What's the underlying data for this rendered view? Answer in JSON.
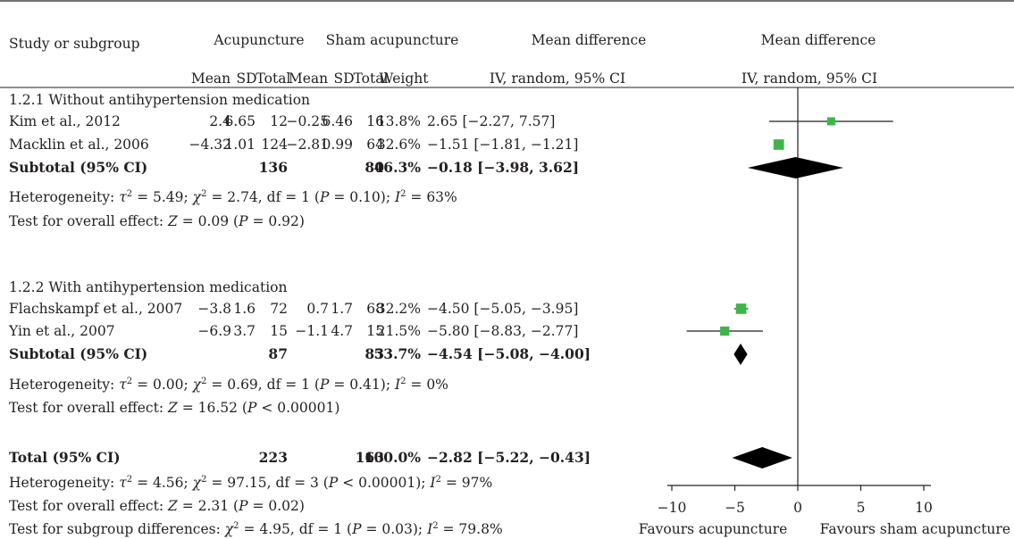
{
  "headers": {
    "study": "Study or subgroup",
    "acupuncture": "Acupuncture",
    "sham": "Sham acupuncture",
    "mean_difference": "Mean difference",
    "mean_difference_plot": "Mean difference",
    "ac_mean": "Mean",
    "ac_sd": "SD",
    "ac_total": "Total",
    "sh_mean": "Mean",
    "sh_sd": "SD",
    "sh_total": "Total",
    "weight": "Weight",
    "method": "IV, random, 95% CI",
    "method_plot": "IV, random, 95% CI"
  },
  "subgroups": [
    {
      "title": "1.2.1 Without antihypertension medication",
      "studies": [
        {
          "name": "Kim et al., 2012",
          "ac_mean": "2.4",
          "ac_sd": "6.65",
          "ac_total": "12",
          "sh_mean": "−0.25",
          "sh_sd": "6.46",
          "sh_total": "16",
          "weight": "13.8%",
          "ci": "2.65 [−2.27, 7.57]",
          "md": 2.65,
          "lo": -2.27,
          "hi": 7.57,
          "w": 13.8
        },
        {
          "name": "Macklin et al., 2006",
          "ac_mean": "−4.32",
          "ac_sd": "1.01",
          "ac_total": "124",
          "sh_mean": "−2.81",
          "sh_sd": "0.99",
          "sh_total": "64",
          "weight": "32.6%",
          "ci": "−1.51 [−1.81, −1.21]",
          "md": -1.51,
          "lo": -1.81,
          "hi": -1.21,
          "w": 32.6
        }
      ],
      "subtotal": {
        "label": "Subtotal (95% CI)",
        "ac_total": "136",
        "sh_total": "80",
        "weight": "46.3%",
        "ci": "−0.18 [−3.98, 3.62]",
        "md": -0.18,
        "lo": -3.98,
        "hi": 3.62
      },
      "heterogeneity": {
        "p1": "Heterogeneity: ",
        "tau": "τ",
        "p2": " = 5.49; ",
        "chi": "χ",
        "p3": " = 2.74, df = 1 (",
        "P": "P",
        "p4": " = 0.10);  ",
        "I": "I",
        "p5": " = 63%"
      },
      "overall": {
        "p1": "Test for overall effect: ",
        "Z": "Z",
        "p2": " = 0.09 (",
        "P": "P",
        "p3": " = 0.92)"
      }
    },
    {
      "title": "1.2.2 With antihypertension medication",
      "studies": [
        {
          "name": "Flachskampf et al., 2007",
          "ac_mean": "−3.8",
          "ac_sd": "1.6",
          "ac_total": "72",
          "sh_mean": "0.7",
          "sh_sd": "1.7",
          "sh_total": "68",
          "weight": "32.2%",
          "ci": "−4.50 [−5.05, −3.95]",
          "md": -4.5,
          "lo": -5.05,
          "hi": -3.95,
          "w": 32.2
        },
        {
          "name": "Yin et al., 2007",
          "ac_mean": "−6.9",
          "ac_sd": "3.7",
          "ac_total": "15",
          "sh_mean": "−1.1",
          "sh_sd": "4.7",
          "sh_total": "15",
          "weight": "21.5%",
          "ci": "−5.80 [−8.83, −2.77]",
          "md": -5.8,
          "lo": -8.83,
          "hi": -2.77,
          "w": 21.5
        }
      ],
      "subtotal": {
        "label": "Subtotal (95% CI)",
        "ac_total": "87",
        "sh_total": "83",
        "weight": "53.7%",
        "ci": "−4.54 [−5.08, −4.00]",
        "md": -4.54,
        "lo": -5.08,
        "hi": -4.0
      },
      "heterogeneity": {
        "p1": "Heterogeneity: ",
        "tau": "τ",
        "p2": " =  0.00; ",
        "chi": "χ",
        "p3": " = 0.69, df = 1 (",
        "P": "P",
        "p4": " = 0.41);  ",
        "I": "I",
        "p5": " = 0%"
      },
      "overall": {
        "p1": "Test for overall effect: ",
        "Z": "Z",
        "p2": " = 16.52 (",
        "P": "P",
        "p3": " < 0.00001)"
      }
    }
  ],
  "total": {
    "label": "Total (95% CI)",
    "ac_total": "223",
    "sh_total": "163",
    "weight": "100.0%",
    "ci": "−2.82 [−5.22, −0.43]",
    "md": -2.82,
    "lo": -5.22,
    "hi": -0.43,
    "heterogeneity": {
      "p1": "Heterogeneity: ",
      "tau": "τ",
      "p2": " = 4.56; ",
      "chi": "χ",
      "p3": " = 97.15, df = 3 (",
      "P": "P",
      "p4": " < 0.00001);  ",
      "I": "I",
      "p5": " = 97%"
    },
    "overall": {
      "p1": "Test for overall effect: ",
      "Z": "Z",
      "p2": " = 2.31 (",
      "P": "P",
      "p3": " = 0.02)"
    },
    "subgroup_diff": {
      "p1": "Test for subgroup differences: ",
      "chi": "χ",
      "p2": " = 4.95, df = 1 (",
      "P": "P",
      "p3": " = 0.03);  ",
      "I": "I",
      "p4": " = 79.8%"
    }
  },
  "chart_data": {
    "type": "forest",
    "xlim": [
      -10,
      10
    ],
    "ticks": [
      -10,
      -5,
      0,
      5,
      10
    ],
    "tick_labels": [
      "−10",
      "−5",
      "0",
      "5",
      "10"
    ],
    "left_label": "Favours acupuncture",
    "right_label": "Favours sham acupuncture",
    "square_color": "#3db54a",
    "diamond_color": "#000000"
  }
}
